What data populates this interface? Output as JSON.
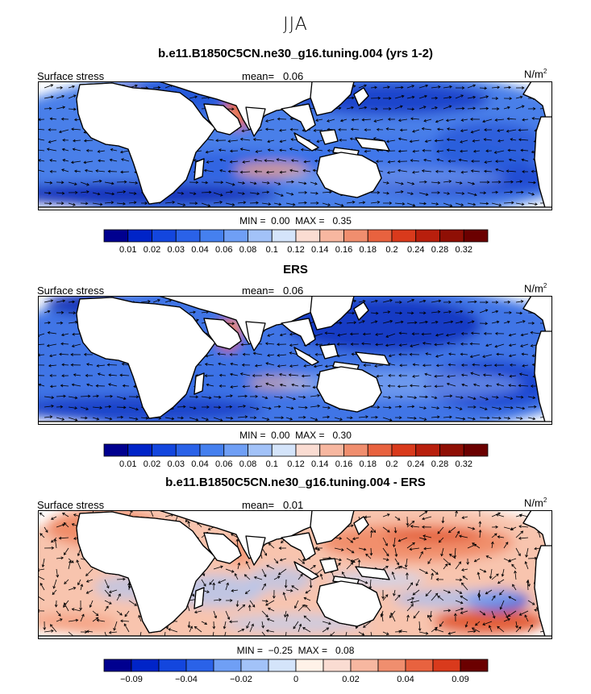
{
  "figure": {
    "season": "JJA",
    "panels": [
      {
        "title": "b.e11.B1850C5CN.ne30_g16.tuning.004 (yrs 1-2)",
        "field_label": "Surface stress",
        "mean_label": "mean=",
        "mean_value": "0.06",
        "units_base": "N/m",
        "units_exp": "2",
        "min_label": "MIN =",
        "min_value": "0.00",
        "max_label": "MAX =",
        "max_value": "0.35"
      },
      {
        "title": "ERS",
        "field_label": "Surface stress",
        "mean_label": "mean=",
        "mean_value": "0.06",
        "units_base": "N/m",
        "units_exp": "2",
        "min_label": "MIN =",
        "min_value": "0.00",
        "max_label": "MAX =",
        "max_value": "0.30"
      },
      {
        "title": "b.e11.B1850C5CN.ne30_g16.tuning.004 - ERS",
        "field_label": "Surface stress",
        "mean_label": "mean=",
        "mean_value": "0.01",
        "units_base": "N/m",
        "units_exp": "2",
        "min_label": "MIN =",
        "min_value": "−0.25",
        "max_label": "MAX =",
        "max_value": "0.08"
      }
    ]
  },
  "chart_data": [
    {
      "type": "heatmap",
      "title": "b.e11.B1850C5CN.ne30_g16.tuning.004 (yrs 1-2)",
      "variable": "Surface stress",
      "units": "N/m2",
      "mean": 0.06,
      "min": 0.0,
      "max": 0.35,
      "colorbar_ticks": [
        "0.01",
        "0.02",
        "0.03",
        "0.04",
        "0.06",
        "0.08",
        "0.1",
        "0.12",
        "0.14",
        "0.16",
        "0.18",
        "0.2",
        "0.24",
        "0.28",
        "0.32"
      ],
      "colorbar_colors": [
        "#00008f",
        "#0024c8",
        "#1346de",
        "#2a62e8",
        "#4580ef",
        "#6f9ff5",
        "#a2c2f8",
        "#d4e4fa",
        "#fadcd2",
        "#f7b7a0",
        "#f08e6e",
        "#e8623f",
        "#d93a1c",
        "#b81f0d",
        "#8f0f05",
        "#6b0000"
      ]
    },
    {
      "type": "heatmap",
      "title": "ERS",
      "variable": "Surface stress",
      "units": "N/m2",
      "mean": 0.06,
      "min": 0.0,
      "max": 0.3,
      "colorbar_ticks": [
        "0.01",
        "0.02",
        "0.03",
        "0.04",
        "0.06",
        "0.08",
        "0.1",
        "0.12",
        "0.14",
        "0.16",
        "0.18",
        "0.2",
        "0.24",
        "0.28",
        "0.32"
      ],
      "colorbar_colors": [
        "#00008f",
        "#0024c8",
        "#1346de",
        "#2a62e8",
        "#4580ef",
        "#6f9ff5",
        "#a2c2f8",
        "#d4e4fa",
        "#fadcd2",
        "#f7b7a0",
        "#f08e6e",
        "#e8623f",
        "#d93a1c",
        "#b81f0d",
        "#8f0f05",
        "#6b0000"
      ]
    },
    {
      "type": "heatmap",
      "title": "b.e11.B1850C5CN.ne30_g16.tuning.004 - ERS",
      "variable": "Surface stress",
      "units": "N/m2",
      "mean": 0.01,
      "min": -0.25,
      "max": 0.08,
      "colorbar_ticks": [
        "−0.09",
        "",
        "−0.04",
        "",
        "−0.02",
        "",
        "0",
        "",
        "0.02",
        "",
        "0.04",
        "",
        "0.09"
      ],
      "colorbar_colors": [
        "#00008f",
        "#0024c8",
        "#1346de",
        "#2a62e8",
        "#6f9ff5",
        "#a2c2f8",
        "#d4e4fa",
        "#fff2e8",
        "#fadcd2",
        "#f7b7a0",
        "#f08e6e",
        "#e8623f",
        "#d93a1c",
        "#6b0000"
      ]
    }
  ]
}
